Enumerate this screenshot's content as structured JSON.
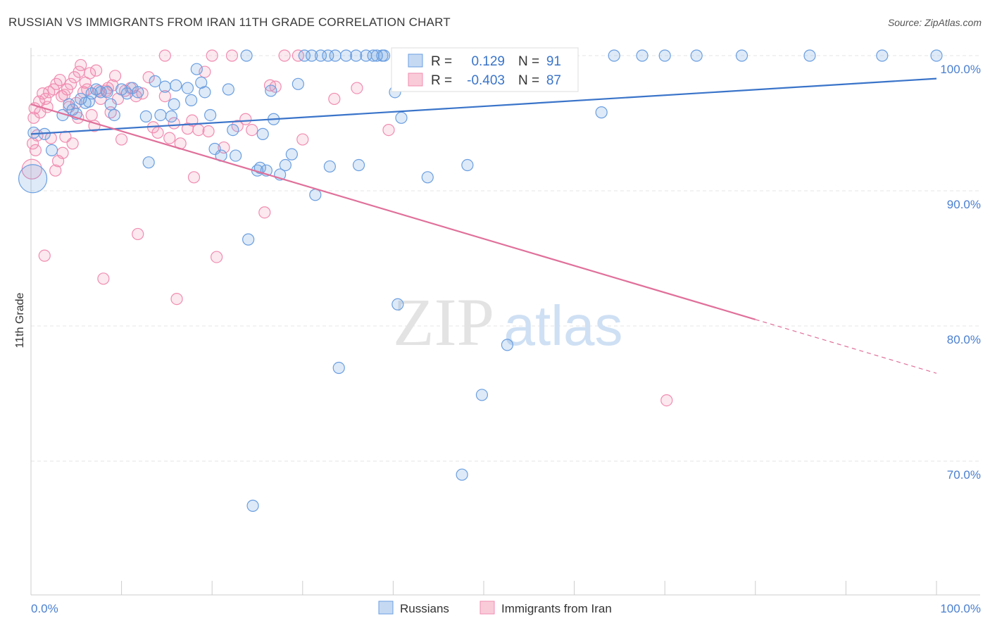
{
  "title": "RUSSIAN VS IMMIGRANTS FROM IRAN 11TH GRADE CORRELATION CHART",
  "source": "Source: ZipAtlas.com",
  "watermark": {
    "zip": "ZIP",
    "atlas": "atlas"
  },
  "colors": {
    "blue": "#6a9ee0",
    "blue_line": "#3a74c9",
    "pink": "#f08cb0",
    "pink_line": "#e0709a",
    "tick": "#4a7fd0"
  },
  "legend": {
    "r_label": "R =",
    "n_label": "N =",
    "series": [
      {
        "name": "Russians",
        "r": "0.129",
        "n": "91"
      },
      {
        "name": "Immigrants from Iran",
        "r": "-0.403",
        "n": "87"
      }
    ]
  },
  "chart_data": {
    "type": "scatter",
    "xlabel": "",
    "ylabel": "11th Grade",
    "xlim": [
      0,
      100
    ],
    "ylim": [
      62,
      100.5
    ],
    "x_tick_labels": [
      "0.0%",
      "100.0%"
    ],
    "y_ticks": [
      {
        "value": 100,
        "label": "100.0%"
      },
      {
        "value": 90,
        "label": "90.0%"
      },
      {
        "value": 80,
        "label": "80.0%"
      },
      {
        "value": 70,
        "label": "70.0%"
      }
    ],
    "grid": "horizontal-dashed",
    "series": [
      {
        "name": "Russians",
        "color": "#6a9ee0",
        "trend": {
          "x0": 0,
          "y0": 94.2,
          "x1": 100,
          "y1": 98.3,
          "dashed_from": null
        },
        "points": [
          [
            0.2,
            90.9,
            3
          ],
          [
            0.3,
            94.3,
            1
          ],
          [
            1.5,
            94.2,
            1
          ],
          [
            2.3,
            93.0,
            1
          ],
          [
            3.5,
            95.6,
            1
          ],
          [
            4.2,
            96.4,
            1
          ],
          [
            4.6,
            96.0,
            1
          ],
          [
            5.0,
            95.7,
            1
          ],
          [
            5.5,
            96.8,
            1
          ],
          [
            6.0,
            96.5,
            1
          ],
          [
            6.4,
            96.6,
            1
          ],
          [
            6.7,
            97.2,
            1
          ],
          [
            7.2,
            97.5,
            1
          ],
          [
            7.7,
            97.3,
            1
          ],
          [
            8.4,
            97.3,
            1
          ],
          [
            8.8,
            96.4,
            1
          ],
          [
            9.2,
            95.6,
            1
          ],
          [
            10.0,
            97.5,
            1
          ],
          [
            10.6,
            97.2,
            1
          ],
          [
            11.2,
            97.6,
            1
          ],
          [
            11.8,
            97.3,
            1
          ],
          [
            12.7,
            95.5,
            1
          ],
          [
            13.0,
            92.1,
            1
          ],
          [
            13.7,
            98.1,
            1
          ],
          [
            14.3,
            95.6,
            1
          ],
          [
            14.8,
            97.7,
            1
          ],
          [
            15.5,
            95.5,
            1
          ],
          [
            15.8,
            96.4,
            1
          ],
          [
            16.0,
            97.8,
            1
          ],
          [
            17.3,
            97.6,
            1
          ],
          [
            17.7,
            96.7,
            1
          ],
          [
            18.3,
            99.0,
            1
          ],
          [
            18.8,
            98.0,
            1
          ],
          [
            19.2,
            97.3,
            1
          ],
          [
            19.8,
            95.6,
            1
          ],
          [
            20.3,
            93.1,
            1
          ],
          [
            21.0,
            92.6,
            1
          ],
          [
            21.8,
            97.5,
            1
          ],
          [
            22.3,
            94.5,
            1
          ],
          [
            22.6,
            92.6,
            1
          ],
          [
            23.8,
            100.0,
            1
          ],
          [
            24.0,
            86.4,
            1
          ],
          [
            24.5,
            66.7,
            1
          ],
          [
            25.0,
            91.5,
            1
          ],
          [
            25.3,
            91.7,
            1
          ],
          [
            25.6,
            94.2,
            1
          ],
          [
            26.0,
            91.5,
            1
          ],
          [
            26.5,
            97.4,
            1
          ],
          [
            26.8,
            95.3,
            1
          ],
          [
            27.5,
            91.2,
            1
          ],
          [
            28.1,
            91.9,
            1
          ],
          [
            28.8,
            92.7,
            1
          ],
          [
            29.5,
            97.9,
            1
          ],
          [
            30.2,
            100.0,
            1
          ],
          [
            31.0,
            100.0,
            1
          ],
          [
            31.4,
            89.7,
            1
          ],
          [
            32.0,
            100.0,
            1
          ],
          [
            32.8,
            100.0,
            1
          ],
          [
            33.0,
            91.8,
            1
          ],
          [
            33.6,
            100.0,
            1
          ],
          [
            34.0,
            76.9,
            1
          ],
          [
            34.8,
            100.0,
            1
          ],
          [
            35.9,
            100.0,
            1
          ],
          [
            36.2,
            91.9,
            1
          ],
          [
            37.0,
            100.0,
            1
          ],
          [
            37.8,
            100.0,
            1
          ],
          [
            38.2,
            100.0,
            1
          ],
          [
            38.8,
            100.0,
            1
          ],
          [
            39.0,
            100.0,
            1
          ],
          [
            40.2,
            97.3,
            1
          ],
          [
            40.5,
            81.6,
            1
          ],
          [
            40.9,
            95.4,
            1
          ],
          [
            42.2,
            100.0,
            1
          ],
          [
            43.8,
            91.0,
            1
          ],
          [
            46.5,
            100.0,
            1
          ],
          [
            47.6,
            69.0,
            1
          ],
          [
            48.2,
            91.9,
            1
          ],
          [
            49.8,
            74.9,
            1
          ],
          [
            50.5,
            100.0,
            1
          ],
          [
            52.6,
            78.6,
            1
          ],
          [
            56.5,
            100.0,
            1
          ],
          [
            58.0,
            100.0,
            1
          ],
          [
            63.0,
            95.8,
            1
          ],
          [
            64.4,
            100.0,
            1
          ],
          [
            67.5,
            100.0,
            1
          ],
          [
            70.0,
            100.0,
            1
          ],
          [
            73.5,
            100.0,
            1
          ],
          [
            78.5,
            100.0,
            1
          ],
          [
            86.0,
            100.0,
            1
          ],
          [
            94.0,
            100.0,
            1
          ],
          [
            100.0,
            100.0,
            1
          ]
        ]
      },
      {
        "name": "Immigrants from Iran",
        "color": "#f08cb0",
        "trend": {
          "x0": 0,
          "y0": 96.4,
          "x1": 100,
          "y1": 76.5,
          "dashed_from": 80
        },
        "points": [
          [
            0.1,
            91.6,
            2
          ],
          [
            0.2,
            93.5,
            1
          ],
          [
            0.3,
            95.4,
            1
          ],
          [
            0.4,
            96.1,
            1
          ],
          [
            0.5,
            93.0,
            1
          ],
          [
            0.7,
            94.1,
            1
          ],
          [
            0.9,
            96.6,
            1
          ],
          [
            1.0,
            95.8,
            1
          ],
          [
            1.3,
            97.2,
            1
          ],
          [
            1.5,
            85.2,
            1
          ],
          [
            1.6,
            96.8,
            1
          ],
          [
            1.8,
            96.2,
            1
          ],
          [
            2.0,
            97.3,
            1
          ],
          [
            2.2,
            93.9,
            1
          ],
          [
            2.5,
            97.5,
            1
          ],
          [
            2.7,
            91.5,
            1
          ],
          [
            2.8,
            97.9,
            1
          ],
          [
            3.0,
            92.2,
            1
          ],
          [
            3.2,
            98.2,
            1
          ],
          [
            3.4,
            97.0,
            1
          ],
          [
            3.5,
            92.8,
            1
          ],
          [
            3.7,
            97.1,
            1
          ],
          [
            3.8,
            94.0,
            1
          ],
          [
            4.0,
            97.5,
            1
          ],
          [
            4.2,
            96.2,
            1
          ],
          [
            4.4,
            97.9,
            1
          ],
          [
            4.6,
            93.5,
            1
          ],
          [
            4.8,
            98.4,
            1
          ],
          [
            5.0,
            96.5,
            1
          ],
          [
            5.2,
            95.4,
            1
          ],
          [
            5.3,
            98.8,
            1
          ],
          [
            5.5,
            99.3,
            1
          ],
          [
            5.8,
            97.3,
            1
          ],
          [
            6.0,
            98.0,
            1
          ],
          [
            6.2,
            97.5,
            1
          ],
          [
            6.5,
            98.7,
            1
          ],
          [
            6.7,
            95.6,
            1
          ],
          [
            7.0,
            94.8,
            1
          ],
          [
            7.2,
            98.9,
            1
          ],
          [
            7.5,
            97.4,
            1
          ],
          [
            7.7,
            96.8,
            1
          ],
          [
            8.0,
            83.5,
            1
          ],
          [
            8.3,
            97.4,
            1
          ],
          [
            8.5,
            97.6,
            1
          ],
          [
            8.8,
            95.8,
            1
          ],
          [
            9.0,
            97.8,
            1
          ],
          [
            9.3,
            98.5,
            1
          ],
          [
            9.6,
            96.8,
            1
          ],
          [
            10.0,
            93.8,
            1
          ],
          [
            10.4,
            97.4,
            1
          ],
          [
            11.0,
            97.6,
            1
          ],
          [
            11.6,
            97.0,
            1
          ],
          [
            11.8,
            86.8,
            1
          ],
          [
            12.3,
            97.2,
            1
          ],
          [
            13.0,
            98.4,
            1
          ],
          [
            13.5,
            94.7,
            1
          ],
          [
            14.0,
            94.3,
            1
          ],
          [
            14.8,
            97.0,
            1
          ],
          [
            14.8,
            100.0,
            1
          ],
          [
            15.3,
            93.9,
            1
          ],
          [
            15.8,
            95.0,
            1
          ],
          [
            16.1,
            82.0,
            1
          ],
          [
            16.5,
            93.5,
            1
          ],
          [
            17.3,
            94.6,
            1
          ],
          [
            17.8,
            95.2,
            1
          ],
          [
            18.0,
            91.0,
            1
          ],
          [
            18.5,
            94.5,
            1
          ],
          [
            19.2,
            98.8,
            1
          ],
          [
            19.6,
            94.4,
            1
          ],
          [
            20.0,
            100.0,
            1
          ],
          [
            20.5,
            85.1,
            1
          ],
          [
            21.3,
            93.2,
            1
          ],
          [
            22.2,
            100.0,
            1
          ],
          [
            22.8,
            94.8,
            1
          ],
          [
            23.7,
            95.3,
            1
          ],
          [
            24.4,
            94.5,
            1
          ],
          [
            25.8,
            88.4,
            1
          ],
          [
            26.4,
            97.8,
            1
          ],
          [
            27.0,
            97.7,
            1
          ],
          [
            28.0,
            100.0,
            1
          ],
          [
            29.5,
            100.0,
            1
          ],
          [
            30.0,
            93.8,
            1
          ],
          [
            33.5,
            96.8,
            1
          ],
          [
            36.0,
            97.6,
            1
          ],
          [
            39.5,
            94.5,
            1
          ],
          [
            70.2,
            74.5,
            1
          ],
          [
            80.0,
            80.2,
            0
          ]
        ]
      }
    ]
  }
}
